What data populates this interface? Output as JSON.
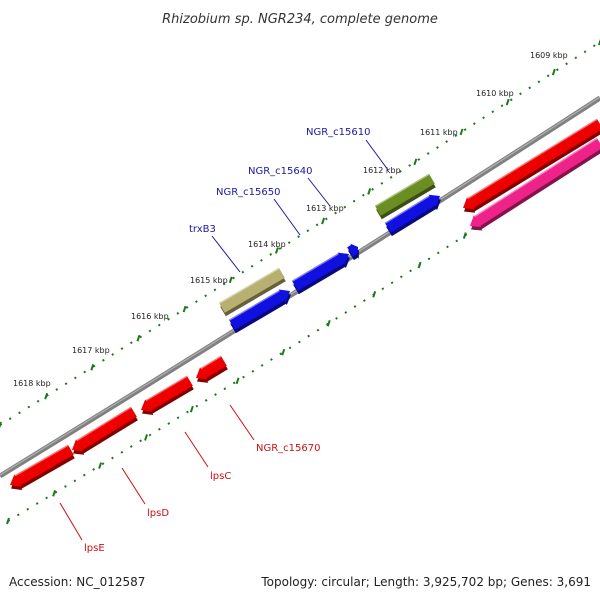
{
  "title": "Rhizobium sp. NGR234, complete genome",
  "footer": {
    "accession": "Accession: NC_012587",
    "topology": "Topology: circular; Length: 3,925,702 bp; Genes: 3,691"
  },
  "colors": {
    "backbone": "#777777",
    "ticks": "#1a7a1a",
    "label_upper": "#1a1aa0",
    "label_lower": "#cc1111"
  },
  "scale": [
    "1609 kbp",
    "1610 kbp",
    "1611 kbp",
    "1612 kbp",
    "1613 kbp",
    "1614 kbp",
    "1615 kbp",
    "1616 kbp",
    "1617 kbp",
    "1618 kbp"
  ],
  "genes": [
    {
      "name": "NGR_c15610",
      "color": "#6b8e23",
      "labeled": true
    },
    {
      "name": "NGR_c15640",
      "color": "#1010e0",
      "labeled": true
    },
    {
      "name": "NGR_c15650",
      "color": "#1010e0",
      "labeled": true
    },
    {
      "name": "trxB3",
      "color": "#b8b070",
      "labeled": true
    },
    {
      "name": "NGR_c15670",
      "color": "#ee0000",
      "labeled": true
    },
    {
      "name": "lpsC",
      "color": "#ee0000",
      "labeled": true
    },
    {
      "name": "lpsD",
      "color": "#ee0000",
      "labeled": true
    },
    {
      "name": "lpsE",
      "color": "#ee0000",
      "labeled": true
    },
    {
      "name": "",
      "color": "#ee0000",
      "labeled": false
    },
    {
      "name": "",
      "color": "#ee2288",
      "labeled": false
    },
    {
      "name": "",
      "color": "#1010e0",
      "labeled": false
    },
    {
      "name": "",
      "color": "#1010e0",
      "labeled": false
    }
  ]
}
